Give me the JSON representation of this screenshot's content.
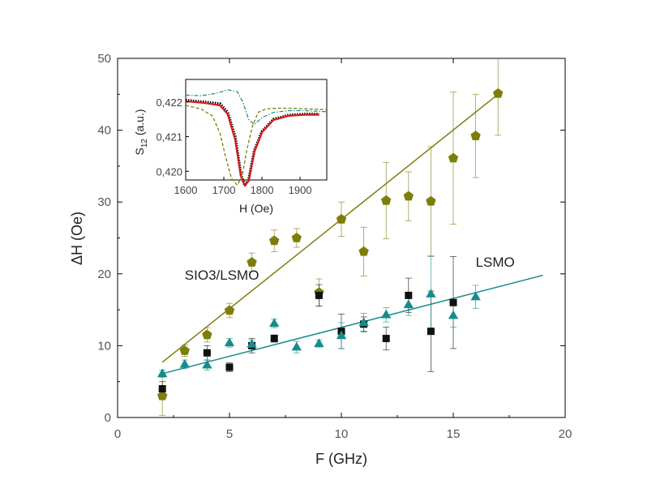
{
  "chart_data": [
    {
      "type": "scatter",
      "xlabel": "F (GHz)",
      "ylabel": "ΔH (Oe)",
      "xlim": [
        0,
        20
      ],
      "ylim": [
        0,
        50
      ],
      "xticks": [
        0,
        5,
        10,
        15,
        20
      ],
      "yticks": [
        0,
        10,
        20,
        30,
        40,
        50
      ],
      "grid": false,
      "series": [
        {
          "marker": "pentagon",
          "color": "#7d7d0a",
          "x": [
            2,
            3,
            4,
            5,
            6,
            7,
            8,
            9,
            10,
            11,
            12,
            13,
            14,
            15,
            16,
            17
          ],
          "y": [
            3.0,
            9.3,
            11.5,
            14.9,
            21.6,
            24.6,
            25.0,
            17.4,
            27.6,
            23.1,
            30.2,
            30.8,
            30.1,
            36.1,
            39.2,
            45.1
          ],
          "yerr": [
            2.7,
            0.8,
            1.0,
            1.0,
            1.3,
            1.5,
            1.3,
            1.9,
            2.4,
            3.4,
            5.3,
            3.4,
            7.6,
            9.2,
            5.8,
            5.8
          ]
        },
        {
          "marker": "square",
          "color": "#111111",
          "x": [
            2,
            4,
            5,
            6,
            7,
            9,
            10,
            11,
            12,
            13,
            14,
            15
          ],
          "y": [
            4.0,
            9.0,
            7.0,
            10.0,
            11.0,
            17.0,
            12.0,
            13.0,
            11.0,
            17.0,
            12.0,
            16.0
          ],
          "yerr": [
            1.0,
            1.0,
            0.6,
            1.0,
            0.5,
            1.5,
            2.4,
            1.0,
            1.6,
            2.4,
            5.6,
            6.4
          ]
        },
        {
          "marker": "triangle",
          "color": "#178c8c",
          "x": [
            2,
            3,
            4,
            5,
            6,
            7,
            8,
            9,
            10,
            11,
            12,
            13,
            14,
            15,
            16
          ],
          "y": [
            6.1,
            7.4,
            7.3,
            10.4,
            10.2,
            13.1,
            9.8,
            10.3,
            11.4,
            13.2,
            14.3,
            15.7,
            17.2,
            14.2,
            16.8
          ],
          "yerr": [
            0.5,
            0.6,
            0.7,
            0.6,
            0.6,
            0.6,
            0.8,
            0.5,
            1.8,
            1.3,
            1.0,
            1.5,
            5.2,
            1.6,
            1.6
          ]
        }
      ],
      "fits": [
        {
          "color": "#7d7d0a",
          "x": [
            2,
            17
          ],
          "y": [
            7.7,
            45.0
          ]
        },
        {
          "color": "#178c8c",
          "x": [
            2,
            19
          ],
          "y": [
            6.1,
            19.8
          ]
        }
      ],
      "annotations": [
        {
          "text": "SIO3/LSMO",
          "x": 3.0,
          "y": 19.2
        },
        {
          "text": "LSMO",
          "x": 16.0,
          "y": 21.0
        }
      ]
    },
    {
      "type": "line",
      "xlabel": "H (Oe)",
      "ylabel_main": "S",
      "ylabel_sub": "12",
      "ylabel_unit": " (a.u.)",
      "xlim": [
        1600,
        1970
      ],
      "ylim": [
        0.41975,
        0.42265
      ],
      "xticks": [
        1600,
        1700,
        1800,
        1900
      ],
      "yticks": [
        0.42,
        0.421,
        0.422
      ],
      "xtick_labels": [
        "1600",
        "1700",
        "1800",
        "1900"
      ],
      "ytick_labels": [
        "0,420",
        "0,421",
        "0,422"
      ],
      "series": [
        {
          "style": "dotted-black",
          "color": "#000000",
          "x": [
            1600,
            1650,
            1690,
            1710,
            1730,
            1745,
            1755,
            1765,
            1780,
            1800,
            1830,
            1870,
            1910,
            1950
          ],
          "y": [
            0.42205,
            0.422,
            0.42195,
            0.4217,
            0.421,
            0.4199,
            0.4196,
            0.41975,
            0.4206,
            0.42115,
            0.4215,
            0.42162,
            0.42165,
            0.42165
          ]
        },
        {
          "style": "solid",
          "color": "#d61a1a",
          "x": [
            1600,
            1650,
            1690,
            1710,
            1730,
            1745,
            1755,
            1765,
            1780,
            1800,
            1830,
            1870,
            1910,
            1950
          ],
          "y": [
            0.42202,
            0.42197,
            0.4219,
            0.42165,
            0.4209,
            0.41985,
            0.41958,
            0.41972,
            0.42055,
            0.42112,
            0.42148,
            0.4216,
            0.42163,
            0.42163
          ]
        },
        {
          "style": "dashed",
          "color": "#7d7d0a",
          "x": [
            1600,
            1640,
            1670,
            1690,
            1705,
            1720,
            1735,
            1748,
            1760,
            1775,
            1790,
            1810,
            1840,
            1880,
            1920,
            1970
          ],
          "y": [
            0.4219,
            0.4218,
            0.4216,
            0.4211,
            0.4204,
            0.4198,
            0.4196,
            0.41985,
            0.4206,
            0.4213,
            0.4217,
            0.4218,
            0.42182,
            0.42182,
            0.4218,
            0.42178
          ]
        },
        {
          "style": "dash-dot",
          "color": "#178c8c",
          "x": [
            1600,
            1640,
            1680,
            1710,
            1735,
            1750,
            1765,
            1780,
            1800,
            1830,
            1870,
            1910,
            1970
          ],
          "y": [
            0.4222,
            0.42218,
            0.42225,
            0.42235,
            0.4223,
            0.422,
            0.4215,
            0.42135,
            0.42155,
            0.4217,
            0.42175,
            0.42175,
            0.42172
          ]
        }
      ]
    }
  ]
}
